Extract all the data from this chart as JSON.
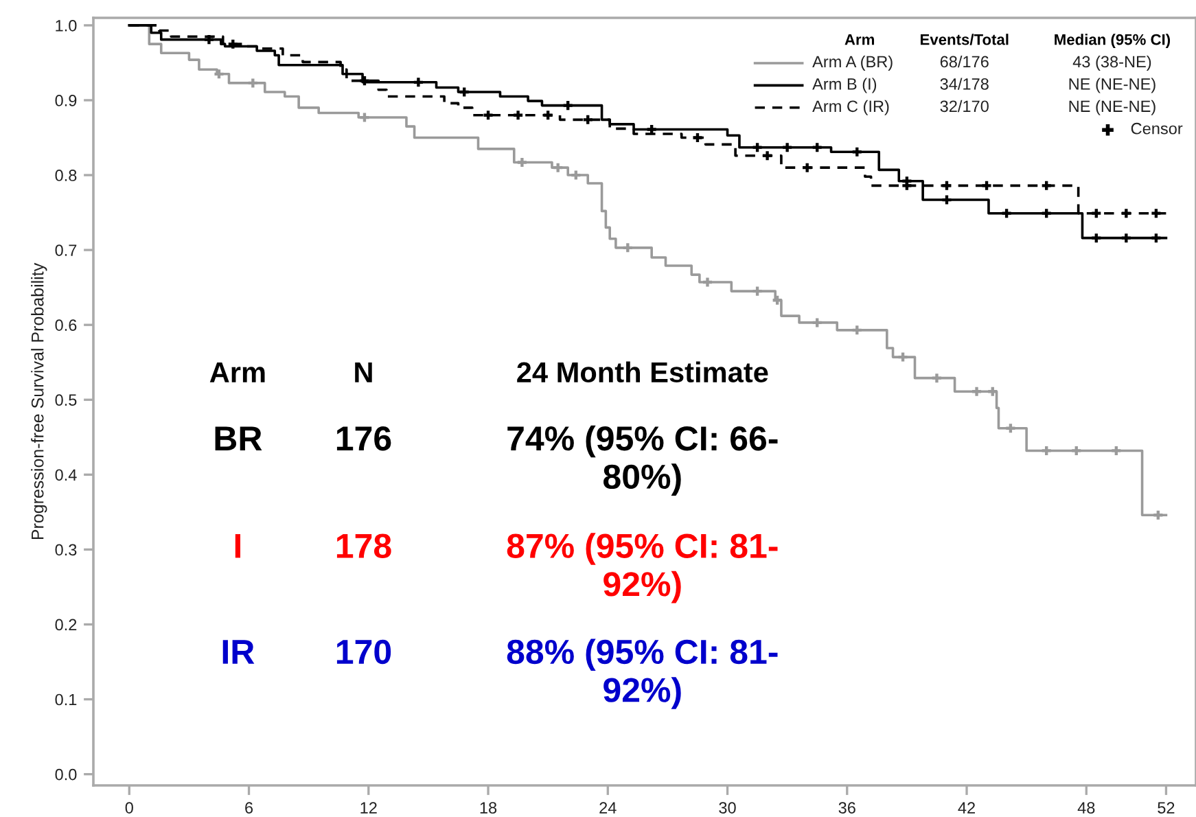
{
  "chart_data": {
    "type": "step",
    "ylabel": "Progression-free Survival Probability",
    "xlim": [
      -1.8,
      53.5
    ],
    "xticks": [
      0,
      6,
      12,
      18,
      24,
      30,
      36,
      42,
      48,
      52
    ],
    "ylim": [
      -0.015,
      1.01
    ],
    "yticks": [
      {
        "value": 0,
        "label": "0.0"
      },
      0.1,
      0.2,
      0.3,
      0.4,
      0.5,
      0.6,
      0.7,
      0.8,
      0.9,
      {
        "value": 1,
        "label": "1.0"
      }
    ],
    "grid": false,
    "legend": "top right",
    "series": [
      {
        "name": "Arm A (BR)",
        "color": "#9a9a9a",
        "line_style": "solid",
        "x": [
          0,
          1.0,
          1.6,
          3.0,
          3.5,
          4.4,
          5.0,
          6.8,
          7.8,
          8.5,
          9.5,
          11.5,
          13.9,
          14.3,
          17.5,
          19.3,
          21.2,
          22.0,
          23.0,
          23.7,
          23.9,
          24.1,
          24.4,
          26.2,
          26.9,
          28.2,
          28.6,
          30.2,
          32.4,
          32.7,
          33.6,
          35.5,
          38.0,
          38.3,
          39.4,
          41.4,
          43.5,
          43.6,
          45.0,
          50.8,
          52.0
        ],
        "values": [
          1.0,
          0.975,
          0.963,
          0.954,
          0.941,
          0.935,
          0.923,
          0.911,
          0.905,
          0.89,
          0.883,
          0.877,
          0.865,
          0.85,
          0.835,
          0.817,
          0.81,
          0.8,
          0.789,
          0.752,
          0.73,
          0.715,
          0.703,
          0.69,
          0.679,
          0.667,
          0.657,
          0.645,
          0.633,
          0.612,
          0.603,
          0.593,
          0.569,
          0.557,
          0.529,
          0.511,
          0.489,
          0.462,
          0.432,
          0.346,
          0.346
        ]
      },
      {
        "name": "Arm B (I)",
        "color": "#000000",
        "line_style": "solid",
        "x": [
          0,
          1.1,
          1.6,
          4.6,
          4.8,
          6.4,
          7.3,
          7.5,
          10.7,
          11.7,
          15.4,
          16.5,
          18.6,
          20.0,
          20.7,
          23.7,
          24.1,
          25.3,
          30.0,
          30.6,
          35.2,
          37.6,
          38.6,
          39.8,
          43.1,
          47.8,
          52.0
        ],
        "values": [
          1.0,
          0.99,
          0.981,
          0.975,
          0.972,
          0.966,
          0.96,
          0.947,
          0.935,
          0.924,
          0.917,
          0.911,
          0.905,
          0.899,
          0.893,
          0.874,
          0.868,
          0.861,
          0.853,
          0.837,
          0.831,
          0.807,
          0.792,
          0.767,
          0.749,
          0.716,
          0.716
        ]
      },
      {
        "name": "Arm C (IR)",
        "color": "#000000",
        "line_style": "dashed",
        "x": [
          0,
          1.5,
          2.1,
          4.7,
          5.7,
          6.6,
          7.7,
          8.7,
          10.6,
          10.9,
          12.5,
          12.9,
          15.8,
          16.5,
          17.2,
          21.6,
          24.1,
          25.3,
          27.7,
          28.9,
          30.4,
          32.7,
          36.9,
          37.2,
          47.6,
          52.0
        ],
        "values": [
          1.0,
          0.993,
          0.985,
          0.975,
          0.972,
          0.969,
          0.96,
          0.951,
          0.941,
          0.926,
          0.914,
          0.905,
          0.896,
          0.89,
          0.88,
          0.874,
          0.862,
          0.855,
          0.85,
          0.841,
          0.826,
          0.81,
          0.798,
          0.786,
          0.749,
          0.749
        ]
      },
      {
        "type": "scatter",
        "marker": "cross",
        "color": "#9a9a9a",
        "x": [
          4.5,
          6.2,
          11.8,
          19.7,
          21.5,
          22.4,
          25.0,
          29.0,
          31.5,
          32.5,
          34.5,
          36.5,
          38.8,
          40.5,
          42.5,
          43.3,
          44.2,
          46,
          47.5,
          49.5,
          51.6
        ],
        "values": [
          0.935,
          0.923,
          0.877,
          0.817,
          0.81,
          0.8,
          0.703,
          0.657,
          0.645,
          0.633,
          0.603,
          0.593,
          0.557,
          0.529,
          0.511,
          0.511,
          0.462,
          0.432,
          0.432,
          0.432,
          0.346
        ]
      },
      {
        "name": "Censor",
        "type": "scatter",
        "marker": "cross",
        "color": "#000000",
        "x": [
          4.0,
          14.5,
          16.8,
          22,
          26.2,
          31.5,
          33,
          34.5,
          36.5,
          39,
          41,
          44,
          46,
          48.5,
          50,
          51.5
        ],
        "values": [
          0.981,
          0.924,
          0.911,
          0.893,
          0.861,
          0.837,
          0.837,
          0.837,
          0.831,
          0.792,
          0.767,
          0.749,
          0.749,
          0.716,
          0.716,
          0.716
        ]
      },
      {
        "type": "scatter",
        "marker": "cross",
        "color": "#000000",
        "x": [
          5.2,
          11.8,
          18,
          19.5,
          21,
          23,
          28.5,
          32,
          34,
          39,
          41,
          43,
          46,
          48.5,
          50,
          51.5
        ],
        "values": [
          0.975,
          0.926,
          0.88,
          0.88,
          0.88,
          0.874,
          0.85,
          0.826,
          0.81,
          0.786,
          0.786,
          0.786,
          0.786,
          0.749,
          0.749,
          0.749
        ]
      }
    ],
    "annotations": [
      "Arm",
      "Events/Total",
      "Median (95% CI)",
      "68/176",
      "43 (38-NE)",
      "34/178",
      "NE (NE-NE)",
      "32/170",
      "NE (NE-NE)",
      "Arm",
      "N",
      "24 Month Estimate",
      "BR",
      "176",
      "74% (95% CI: 66-\n80%)",
      "I",
      "178",
      "87% (95% CI: 81-\n92%)",
      "IR",
      "170",
      "88% (95% CI: 81-\n92%)"
    ]
  }
}
